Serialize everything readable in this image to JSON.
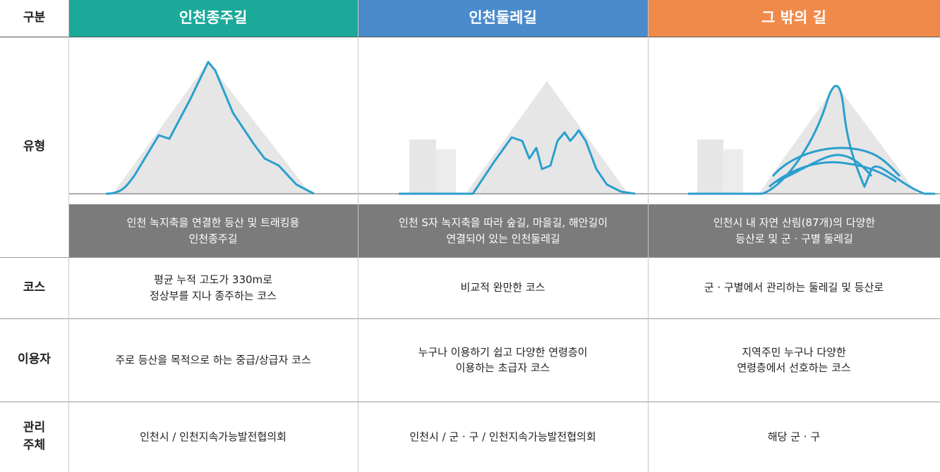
{
  "header": {
    "label": "구분",
    "columns": [
      "인천종주길",
      "인천둘레길",
      "그 밖의 길"
    ]
  },
  "rows": [
    {
      "label": [
        "유형"
      ],
      "cells": [
        [
          "인천 녹지축을 연결한 등산 및 트래킹용",
          "인천종주길"
        ],
        [
          "인천 S자 녹지축을 따라 숲길, 마을길, 해안길이",
          "연결되어 있는 인천둘레길"
        ],
        [
          "인천시 내 자연 산림(87개)의 다양한",
          "등산로 및 군 · 구별 둘레길"
        ]
      ]
    },
    {
      "label": [
        "코스"
      ],
      "cells": [
        [
          "평균 누적 고도가 330m로",
          "정상부를 지나 종주하는 코스"
        ],
        [
          "비교적 완만한 코스"
        ],
        [
          "군 · 구별에서 관리하는 둘레길 및 등산로"
        ]
      ]
    },
    {
      "label": [
        "이용자"
      ],
      "cells": [
        [
          "주로 등산을 목적으로 하는 중급/상급자 코스"
        ],
        [
          "누구나 이용하기 쉽고 다양한 연령층이",
          "이용하는 초급자 코스"
        ],
        [
          "지역주민 누구나 다양한",
          "연령층에서 선호하는 코스"
        ]
      ]
    },
    {
      "label": [
        "관리",
        "주체"
      ],
      "cells": [
        [
          "인천시 / 인천지속가능발전협의회"
        ],
        [
          "인천시 / 군 · 구 / 인천지속가능발전협의회"
        ],
        [
          "해당 군 · 구"
        ]
      ]
    }
  ]
}
